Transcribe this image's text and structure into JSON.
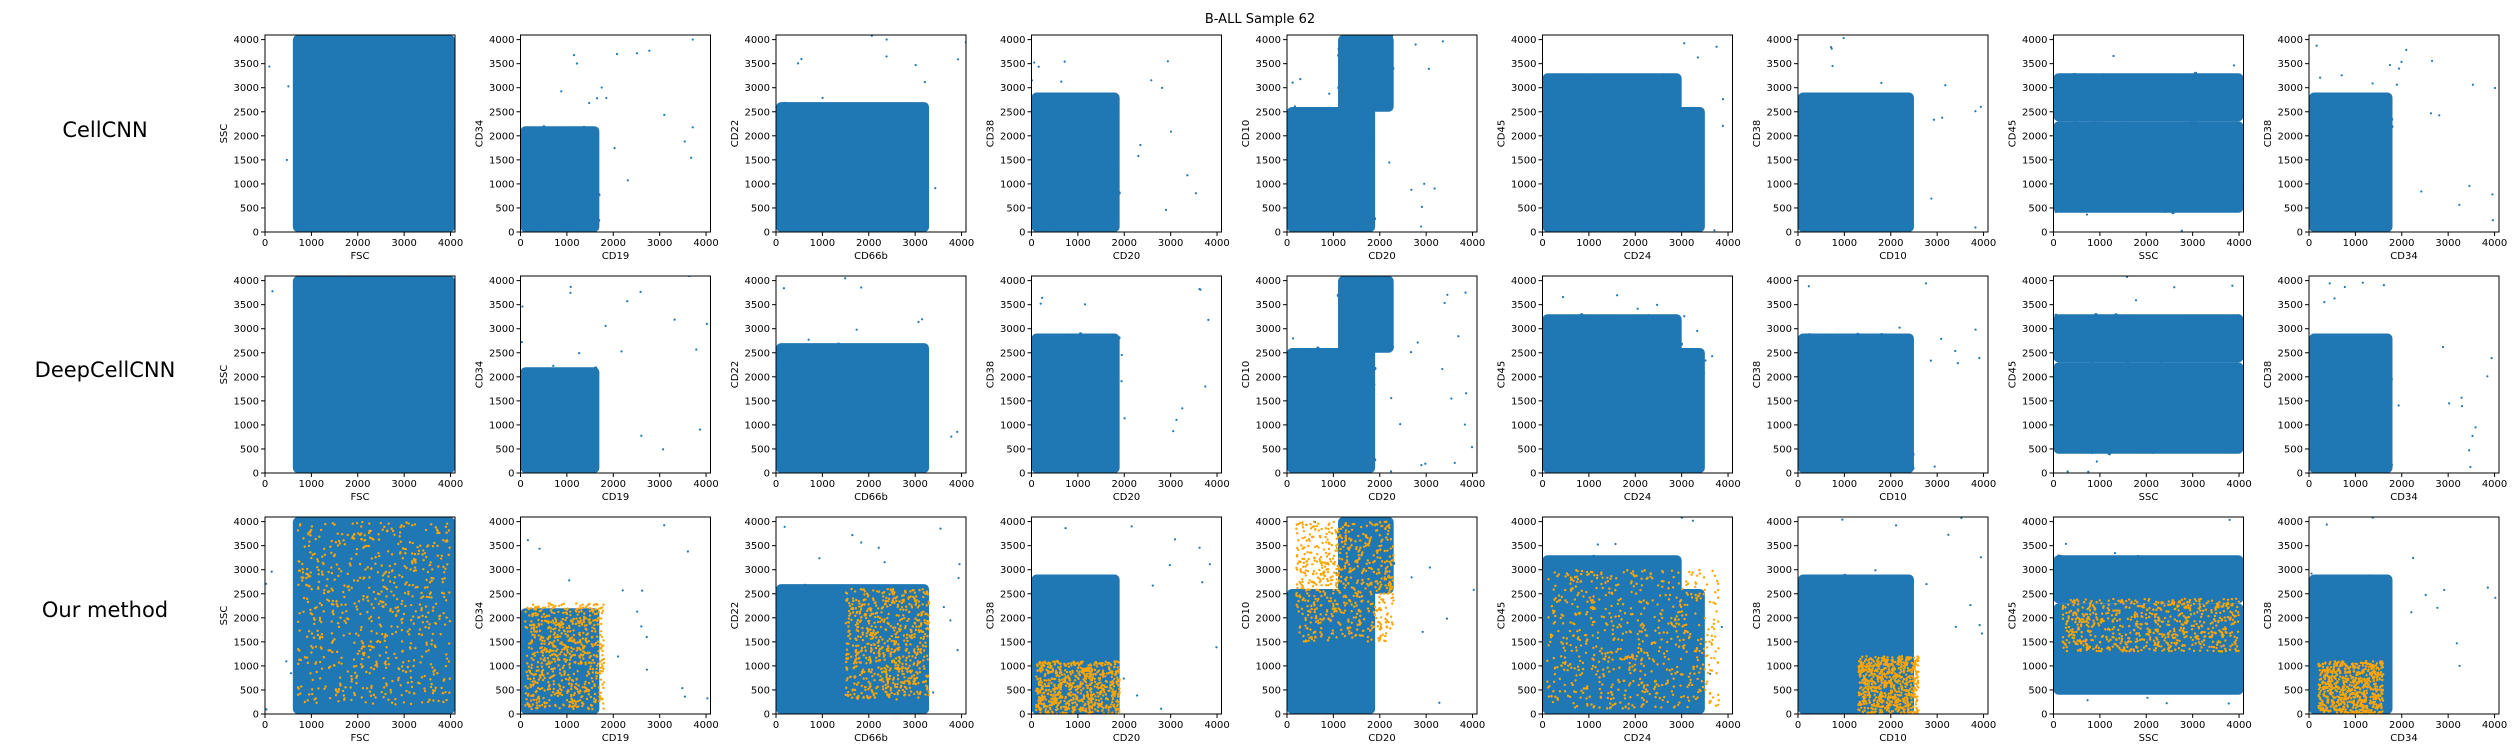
{
  "figure": {
    "title": "B-ALL Sample 62",
    "row_labels": [
      "CellCNN",
      "DeepCellCNN",
      "Our method"
    ]
  },
  "colors": {
    "population": "#1f77b4",
    "highlighted": "#ffa500",
    "axes": "#000000"
  },
  "chart_data": {
    "type": "scatter",
    "grid": false,
    "xlim": [
      0,
      4096
    ],
    "ylim": [
      0,
      4096
    ],
    "xticks": [
      0,
      1000,
      2000,
      3000,
      4000
    ],
    "yticks": [
      0,
      500,
      1000,
      1500,
      2000,
      2500,
      3000,
      3500,
      4000
    ],
    "panel_axes": [
      {
        "xlabel": "FSC",
        "ylabel": "SSC"
      },
      {
        "xlabel": "CD19",
        "ylabel": "CD34"
      },
      {
        "xlabel": "CD66b",
        "ylabel": "CD22"
      },
      {
        "xlabel": "CD20",
        "ylabel": "CD38"
      },
      {
        "xlabel": "CD20",
        "ylabel": "CD10"
      },
      {
        "xlabel": "CD24",
        "ylabel": "CD45"
      },
      {
        "xlabel": "CD10",
        "ylabel": "CD38"
      },
      {
        "xlabel": "SSC",
        "ylabel": "CD45"
      },
      {
        "xlabel": "CD34",
        "ylabel": "CD38"
      }
    ],
    "population_regions": [
      [
        {
          "x": [
            600,
            4096
          ],
          "y": [
            0,
            4096
          ]
        }
      ],
      [
        {
          "x": [
            0,
            1700
          ],
          "y": [
            0,
            2200
          ]
        }
      ],
      [
        {
          "x": [
            0,
            3300
          ],
          "y": [
            0,
            2700
          ]
        }
      ],
      [
        {
          "x": [
            0,
            1900
          ],
          "y": [
            0,
            2900
          ]
        }
      ],
      [
        {
          "x": [
            0,
            1900
          ],
          "y": [
            0,
            2600
          ]
        },
        {
          "x": [
            1100,
            2300
          ],
          "y": [
            2500,
            4096
          ]
        }
      ],
      [
        {
          "x": [
            0,
            3000
          ],
          "y": [
            2300,
            3300
          ]
        },
        {
          "x": [
            0,
            3500
          ],
          "y": [
            0,
            2600
          ]
        }
      ],
      [
        {
          "x": [
            0,
            2500
          ],
          "y": [
            0,
            2900
          ]
        }
      ],
      [
        {
          "x": [
            0,
            4096
          ],
          "y": [
            2300,
            3300
          ]
        },
        {
          "x": [
            0,
            4096
          ],
          "y": [
            400,
            2300
          ]
        }
      ],
      [
        {
          "x": [
            0,
            1800
          ],
          "y": [
            0,
            2900
          ]
        }
      ]
    ],
    "series": [
      {
        "row": 0,
        "highlighted_regions": []
      },
      {
        "row": 1,
        "highlighted_regions": []
      },
      {
        "row": 2,
        "highlighted_regions": [
          [
            {
              "x": [
                700,
                4000
              ],
              "y": [
                200,
                4000
              ]
            }
          ],
          [
            {
              "x": [
                100,
                1800
              ],
              "y": [
                100,
                2300
              ]
            }
          ],
          [
            {
              "x": [
                1500,
                3300
              ],
              "y": [
                300,
                2600
              ]
            }
          ],
          [
            {
              "x": [
                100,
                1900
              ],
              "y": [
                0,
                1100
              ]
            }
          ],
          [
            {
              "x": [
                200,
                2300
              ],
              "y": [
                1500,
                4000
              ]
            }
          ],
          [
            {
              "x": [
                100,
                3800
              ],
              "y": [
                100,
                3000
              ]
            }
          ],
          [
            {
              "x": [
                1300,
                2600
              ],
              "y": [
                0,
                1200
              ]
            }
          ],
          [
            {
              "x": [
                200,
                4000
              ],
              "y": [
                1300,
                2400
              ]
            }
          ],
          [
            {
              "x": [
                200,
                1600
              ],
              "y": [
                0,
                1100
              ]
            }
          ]
        ]
      }
    ]
  }
}
